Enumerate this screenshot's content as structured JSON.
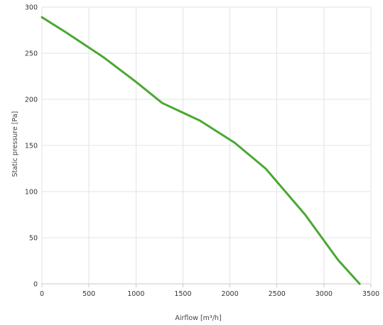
{
  "chart_data": {
    "type": "line",
    "title": "",
    "xlabel": "Airflow [m³/h]",
    "ylabel": "Static pressure [Pa]",
    "xlim": [
      0,
      3500
    ],
    "ylim": [
      0,
      300
    ],
    "x_ticks": [
      "0",
      "500",
      "1000",
      "1500",
      "2000",
      "2500",
      "3000",
      "3500"
    ],
    "y_ticks": [
      "0",
      "50",
      "100",
      "150",
      "200",
      "250",
      "300"
    ],
    "grid": true,
    "legend": "none",
    "series": [
      {
        "color": "#4aa832",
        "x": [
          0,
          250,
          650,
          1000,
          1280,
          1680,
          2050,
          2380,
          2800,
          3150,
          3380
        ],
        "y": [
          289,
          273,
          246,
          219,
          196,
          177,
          153,
          125,
          75,
          26,
          0
        ]
      }
    ]
  }
}
